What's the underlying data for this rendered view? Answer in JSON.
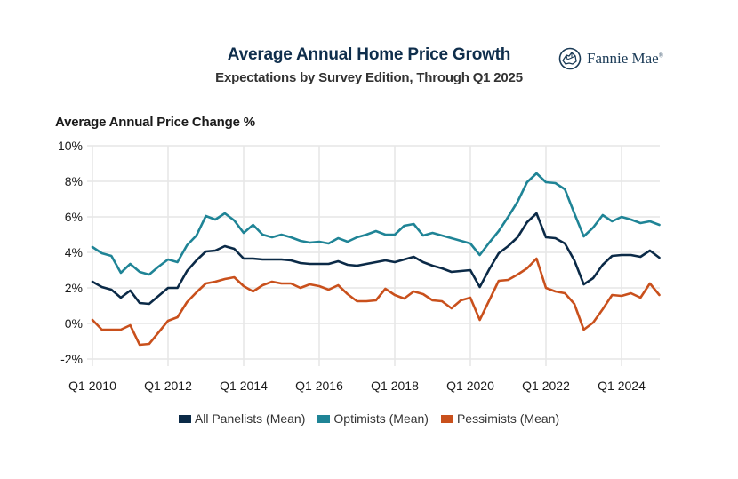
{
  "header": {
    "title": "Average Annual Home Price Growth",
    "subtitle": "Expectations by Survey Edition, Through Q1 2025",
    "brand": "Fannie Mae",
    "brand_mark": "®"
  },
  "colors": {
    "all": "#0b2a47",
    "optimists": "#1f8496",
    "pessimists": "#c9501c",
    "grid": "#e6e6e6"
  },
  "chart_data": {
    "type": "line",
    "title": "Average Annual Home Price Growth",
    "subtitle": "Expectations by Survey Edition, Through Q1 2025",
    "ylabel": "Average Annual Price Change %",
    "xlabel": "",
    "ylim": [
      -2,
      10
    ],
    "yticks": [
      10,
      8,
      6,
      4,
      2,
      0,
      -2
    ],
    "ytick_labels": [
      "10%",
      "8%",
      "6%",
      "4%",
      "2%",
      "0%",
      "-2%"
    ],
    "x_start": "Q1 2010",
    "x_end": "Q1 2025",
    "x_frequency": "quarterly",
    "xtick_index": [
      0,
      8,
      16,
      24,
      32,
      40,
      48,
      56
    ],
    "xtick_labels": [
      "Q1 2010",
      "Q1 2012",
      "Q1 2014",
      "Q1 2016",
      "Q1 2018",
      "Q1 2020",
      "Q1 2022",
      "Q1 2024"
    ],
    "grid": true,
    "legend": "bottom",
    "series": [
      {
        "key": "all",
        "name": "All Panelists (Mean)",
        "values": [
          2.35,
          2.05,
          1.9,
          1.45,
          1.85,
          1.15,
          1.1,
          1.55,
          2.0,
          2.0,
          2.95,
          3.55,
          4.05,
          4.1,
          4.35,
          4.2,
          3.65,
          3.65,
          3.6,
          3.6,
          3.6,
          3.55,
          3.4,
          3.35,
          3.35,
          3.35,
          3.5,
          3.3,
          3.25,
          3.35,
          3.45,
          3.55,
          3.45,
          3.6,
          3.75,
          3.45,
          3.25,
          3.1,
          2.9,
          2.95,
          3.0,
          2.05,
          3.05,
          3.95,
          4.35,
          4.85,
          5.7,
          6.2,
          4.85,
          4.8,
          4.5,
          3.55,
          2.2,
          2.55,
          3.3,
          3.8,
          3.85,
          3.85,
          3.75,
          4.1,
          3.7
        ]
      },
      {
        "key": "optimists",
        "name": "Optimists (Mean)",
        "values": [
          4.3,
          3.95,
          3.8,
          2.85,
          3.35,
          2.9,
          2.75,
          3.2,
          3.6,
          3.45,
          4.4,
          4.95,
          6.05,
          5.85,
          6.2,
          5.8,
          5.1,
          5.55,
          5.0,
          4.85,
          5.0,
          4.85,
          4.65,
          4.55,
          4.6,
          4.5,
          4.8,
          4.6,
          4.85,
          5.0,
          5.2,
          5.0,
          5.0,
          5.5,
          5.6,
          4.95,
          5.1,
          4.95,
          4.8,
          4.65,
          4.5,
          3.85,
          4.55,
          5.2,
          6.0,
          6.85,
          7.95,
          8.45,
          7.95,
          7.9,
          7.55,
          6.2,
          4.9,
          5.4,
          6.1,
          5.75,
          6.0,
          5.85,
          5.65,
          5.75,
          5.55
        ]
      },
      {
        "key": "pessimists",
        "name": "Pessimists (Mean)",
        "values": [
          0.2,
          -0.35,
          -0.35,
          -0.35,
          -0.1,
          -1.2,
          -1.15,
          -0.5,
          0.15,
          0.35,
          1.2,
          1.75,
          2.25,
          2.35,
          2.5,
          2.6,
          2.1,
          1.8,
          2.15,
          2.35,
          2.25,
          2.25,
          2.0,
          2.2,
          2.1,
          1.9,
          2.15,
          1.65,
          1.25,
          1.25,
          1.3,
          1.95,
          1.6,
          1.4,
          1.8,
          1.65,
          1.3,
          1.25,
          0.85,
          1.3,
          1.45,
          0.2,
          1.3,
          2.4,
          2.45,
          2.75,
          3.1,
          3.65,
          2.0,
          1.8,
          1.7,
          1.1,
          -0.35,
          0.05,
          0.8,
          1.6,
          1.55,
          1.7,
          1.45,
          2.25,
          1.6
        ]
      }
    ]
  }
}
